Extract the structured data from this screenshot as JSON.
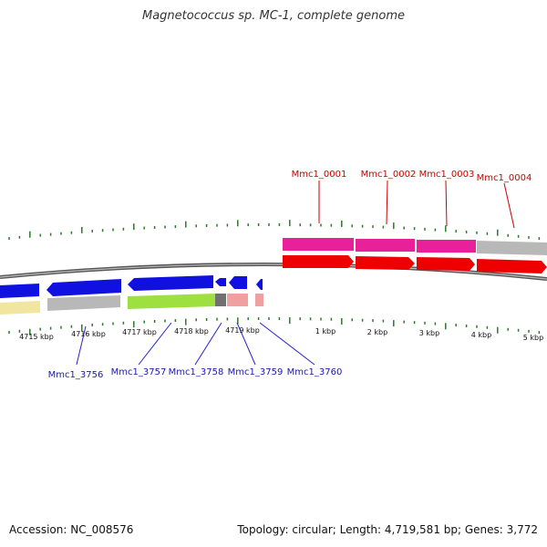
{
  "title": "Magnetococcus sp. MC-1, complete genome",
  "footer": {
    "accession": "Accession: NC_008576",
    "summary": "Topology: circular; Length: 4,719,581 bp; Genes: 3,772"
  },
  "colors": {
    "tick": "#2a7a2a",
    "backbone": "#777777",
    "plus_label": "#cc0000",
    "minus_label": "#1a1aaa",
    "callout_plus": "#cc0000",
    "callout_minus": "#2222cc"
  },
  "scale_labels": [
    "4715 kbp",
    "4716 kbp",
    "4717 kbp",
    "4718 kbp",
    "4719 kbp",
    "1 kbp",
    "2 kbp",
    "3 kbp",
    "4 kbp",
    "5 kbp"
  ],
  "gene_labels_plus": [
    "Mmc1_0001",
    "Mmc1_0002",
    "Mmc1_0003",
    "Mmc1_0004"
  ],
  "gene_labels_minus": [
    "Mmc1_3756",
    "Mmc1_3757",
    "Mmc1_3758",
    "Mmc1_3759",
    "Mmc1_3760"
  ]
}
